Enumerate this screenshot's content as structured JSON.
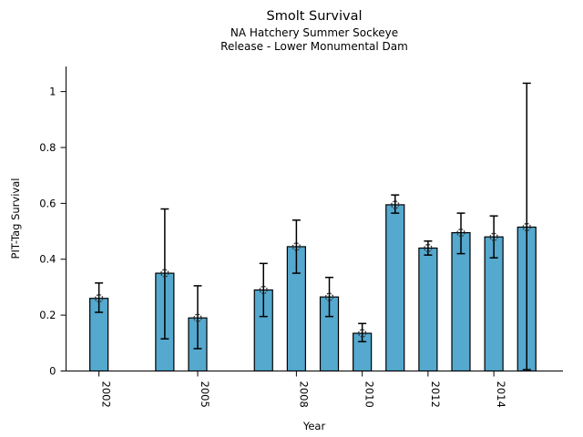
{
  "figure": {
    "title": "Smolt Survival",
    "subtitle_line1": "NA Hatchery Summer Sockeye",
    "subtitle_line2": "Release - Lower Monumental Dam"
  },
  "chart_data": {
    "type": "bar",
    "title": "Smolt Survival",
    "subtitle": [
      "NA Hatchery Summer Sockeye",
      "Release - Lower Monumental Dam"
    ],
    "xlabel": "Year",
    "ylabel": "PIT-Tag Survival",
    "xlim": [
      2001,
      2016.1
    ],
    "ylim": [
      0,
      1.09
    ],
    "grid": false,
    "legend": "none",
    "x_ticks": [
      2002,
      2005,
      2008,
      2010,
      2012,
      2014
    ],
    "x_tick_labels": [
      "2002",
      "2005",
      "2008",
      "2010",
      "2012",
      "2014"
    ],
    "x_tick_label_rotation_deg": 90,
    "y_ticks": [
      0,
      0.2,
      0.4,
      0.6,
      0.8,
      1
    ],
    "y_tick_labels": [
      "0",
      "0.2",
      "0.4",
      "0.6",
      "0.8",
      "1"
    ],
    "bar_color": "#55A8CE",
    "bar_edge_color": "#000000",
    "error_bar_color": "#000000",
    "marker": "open-circle",
    "marker_color": "#333333",
    "series": [
      {
        "year": 2002,
        "value": 0.26,
        "err_low": 0.21,
        "err_high": 0.315
      },
      {
        "year": 2004,
        "value": 0.35,
        "err_low": 0.115,
        "err_high": 0.58
      },
      {
        "year": 2005,
        "value": 0.19,
        "err_low": 0.08,
        "err_high": 0.305
      },
      {
        "year": 2007,
        "value": 0.29,
        "err_low": 0.195,
        "err_high": 0.385
      },
      {
        "year": 2008,
        "value": 0.445,
        "err_low": 0.35,
        "err_high": 0.54
      },
      {
        "year": 2009,
        "value": 0.265,
        "err_low": 0.195,
        "err_high": 0.335
      },
      {
        "year": 2010,
        "value": 0.135,
        "err_low": 0.105,
        "err_high": 0.17
      },
      {
        "year": 2011,
        "value": 0.595,
        "err_low": 0.565,
        "err_high": 0.63
      },
      {
        "year": 2012,
        "value": 0.44,
        "err_low": 0.415,
        "err_high": 0.465
      },
      {
        "year": 2013,
        "value": 0.495,
        "err_low": 0.42,
        "err_high": 0.565
      },
      {
        "year": 2014,
        "value": 0.48,
        "err_low": 0.405,
        "err_high": 0.555
      },
      {
        "year": 2015,
        "value": 0.515,
        "err_low": 0.005,
        "err_high": 1.03
      }
    ]
  }
}
